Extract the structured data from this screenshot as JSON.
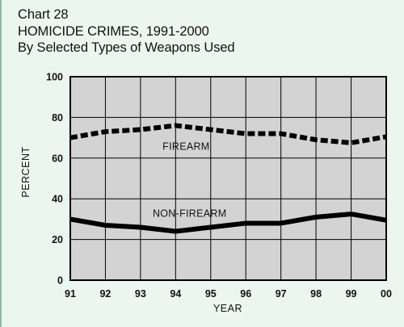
{
  "chart_data": {
    "type": "line",
    "chart_number": "Chart 28",
    "title": "HOMICIDE CRIMES, 1991-2000",
    "subtitle": "By Selected Types of Weapons Used",
    "xlabel": "YEAR",
    "ylabel": "PERCENT",
    "categories": [
      "91",
      "92",
      "93",
      "94",
      "95",
      "96",
      "97",
      "98",
      "99",
      "00"
    ],
    "ylim": [
      0,
      100
    ],
    "yticks": [
      0,
      20,
      40,
      60,
      80,
      100
    ],
    "grid": true,
    "series": [
      {
        "name": "FIREARM",
        "style": "dashed",
        "values": [
          70,
          73,
          74,
          76,
          74,
          72,
          72,
          69,
          67.5,
          70.5
        ]
      },
      {
        "name": "NON-FIREARM",
        "style": "solid",
        "values": [
          30,
          27,
          26,
          24,
          26,
          28,
          28,
          31,
          32.5,
          29.5
        ]
      }
    ],
    "colors": {
      "plot_background": "#d3d3d3",
      "line": "#000000",
      "page_background": "#ecf6f1"
    }
  }
}
